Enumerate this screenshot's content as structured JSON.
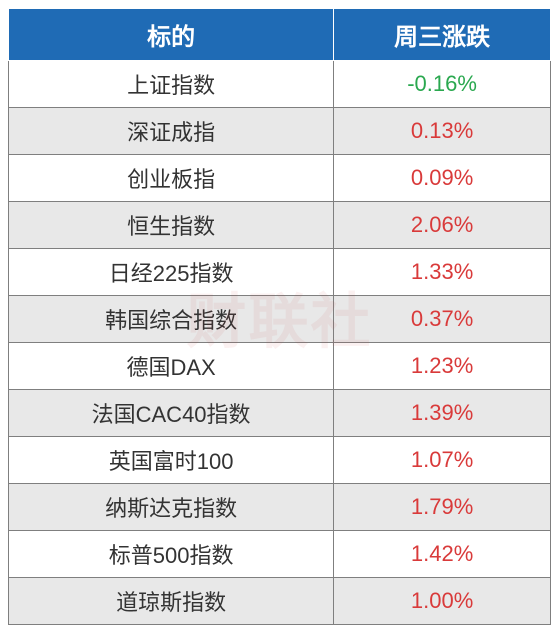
{
  "table": {
    "header_bg": "#1f6bb5",
    "header_color": "#ffffff",
    "header_fontsize": 24,
    "cell_fontsize": 22,
    "border_color": "#7f7f7f",
    "row_bg_even": "#ffffff",
    "row_bg_odd": "#e8e8e8",
    "text_color": "#333333",
    "positive_color": "#d93a3a",
    "negative_color": "#2aa84f",
    "columns": [
      {
        "label": "标的",
        "width": "60%"
      },
      {
        "label": "周三涨跌",
        "width": "40%"
      }
    ],
    "rows": [
      {
        "name": "上证指数",
        "change": "-0.16%",
        "dir": "neg"
      },
      {
        "name": "深证成指",
        "change": "0.13%",
        "dir": "pos"
      },
      {
        "name": "创业板指",
        "change": "0.09%",
        "dir": "pos"
      },
      {
        "name": "恒生指数",
        "change": "2.06%",
        "dir": "pos"
      },
      {
        "name": "日经225指数",
        "change": "1.33%",
        "dir": "pos"
      },
      {
        "name": "韩国综合指数",
        "change": "0.37%",
        "dir": "pos"
      },
      {
        "name": "德国DAX",
        "change": "1.23%",
        "dir": "pos"
      },
      {
        "name": "法国CAC40指数",
        "change": "1.39%",
        "dir": "pos"
      },
      {
        "name": "英国富时100",
        "change": "1.07%",
        "dir": "pos"
      },
      {
        "name": "纳斯达克指数",
        "change": "1.79%",
        "dir": "pos"
      },
      {
        "name": "标普500指数",
        "change": "1.42%",
        "dir": "pos"
      },
      {
        "name": "道琼斯指数",
        "change": "1.00%",
        "dir": "pos"
      }
    ]
  },
  "watermark": {
    "text": "财联社",
    "color": "rgba(200,60,60,0.07)"
  }
}
